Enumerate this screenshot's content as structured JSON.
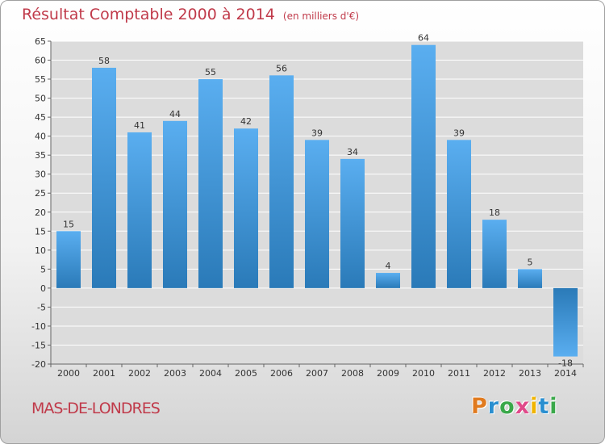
{
  "header": {
    "title": "Résultat Comptable 2000 à 2014",
    "subtitle": "(en milliers d'€)"
  },
  "footer": {
    "commune": "MAS-DE-LONDRES",
    "logo_text": "Proxiti",
    "logo_colors": [
      "#e07a1e",
      "#2a8fd0",
      "#3aa84a",
      "#e04a8a",
      "#f0b400",
      "#2a8fd0",
      "#3aa84a"
    ]
  },
  "colors": {
    "title": "#c03a4a",
    "bar_light": "#5aaef0",
    "bar_dark": "#2a7ab8",
    "grid": "#ffffff"
  },
  "chart_data": {
    "type": "bar",
    "title": "Résultat Comptable 2000 à 2014",
    "xlabel": "",
    "ylabel": "",
    "categories": [
      "2000",
      "2001",
      "2002",
      "2003",
      "2004",
      "2005",
      "2006",
      "2007",
      "2008",
      "2009",
      "2010",
      "2011",
      "2012",
      "2013",
      "2014"
    ],
    "values": [
      15,
      58,
      41,
      44,
      55,
      42,
      56,
      39,
      34,
      4,
      64,
      39,
      18,
      5,
      -18
    ],
    "ylim": [
      -20,
      65
    ],
    "yticks": [
      -20,
      -15,
      -10,
      -5,
      0,
      5,
      10,
      15,
      20,
      25,
      30,
      35,
      40,
      45,
      50,
      55,
      60,
      65
    ],
    "grid": true
  }
}
